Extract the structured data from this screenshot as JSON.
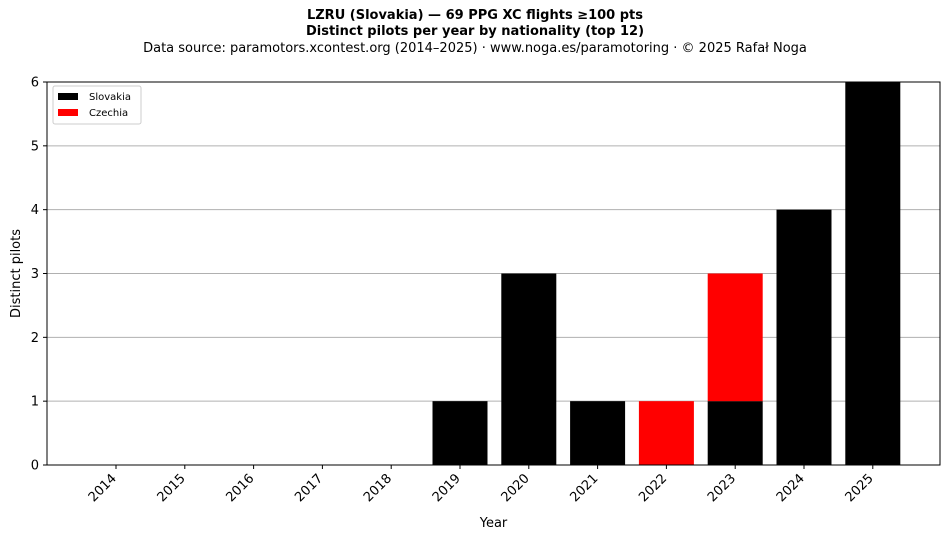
{
  "chart_data": {
    "type": "bar",
    "stacked": true,
    "title_line1": "LZRU (Slovakia)  —  69 PPG XC flights ≥100 pts",
    "title_line2": "Distinct pilots per year by nationality (top 12)",
    "subtitle": "Data source: paramotors.xcontest.org (2014–2025)  ·  www.noga.es/paramotoring  ·  © 2025 Rafał Noga",
    "xlabel": "Year",
    "ylabel": "Distinct pilots",
    "categories": [
      "2014",
      "2015",
      "2016",
      "2017",
      "2018",
      "2019",
      "2020",
      "2021",
      "2022",
      "2023",
      "2024",
      "2025"
    ],
    "series": [
      {
        "name": "Slovakia",
        "color": "#000000",
        "values": [
          0,
          0,
          0,
          0,
          0,
          1,
          3,
          1,
          0,
          1,
          4,
          6
        ]
      },
      {
        "name": "Czechia",
        "color": "#ff0000",
        "values": [
          0,
          0,
          0,
          0,
          0,
          0,
          0,
          0,
          1,
          2,
          0,
          0
        ]
      }
    ],
    "ylim": [
      0,
      6
    ],
    "yticks": [
      0,
      1,
      2,
      3,
      4,
      5,
      6
    ],
    "grid": "horizontal",
    "legend_position": "top-left"
  }
}
